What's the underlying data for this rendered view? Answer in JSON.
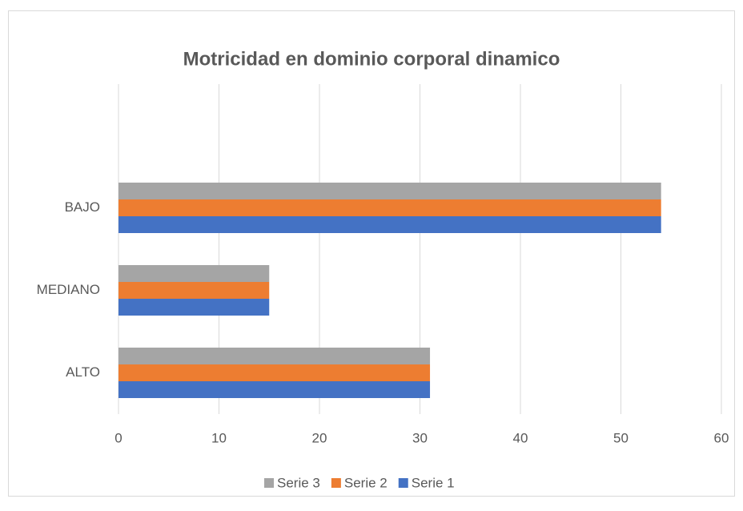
{
  "chart_data": {
    "type": "bar",
    "orientation": "horizontal",
    "title": "Motricidad en dominio corporal dinamico",
    "categories": [
      "ALTO",
      "MEDIANO",
      "BAJO",
      null
    ],
    "series": [
      {
        "name": "Serie 1",
        "color": "#4472c4",
        "values": [
          31,
          15,
          54,
          null
        ]
      },
      {
        "name": "Serie 2",
        "color": "#ed7d31",
        "values": [
          31,
          15,
          54,
          null
        ]
      },
      {
        "name": "Serie 3",
        "color": "#a5a5a5",
        "values": [
          31,
          15,
          54,
          null
        ]
      }
    ],
    "xlim": [
      0,
      60
    ],
    "xticks": [
      0,
      10,
      20,
      30,
      40,
      50,
      60
    ],
    "grid": true,
    "legend": "bottom"
  }
}
